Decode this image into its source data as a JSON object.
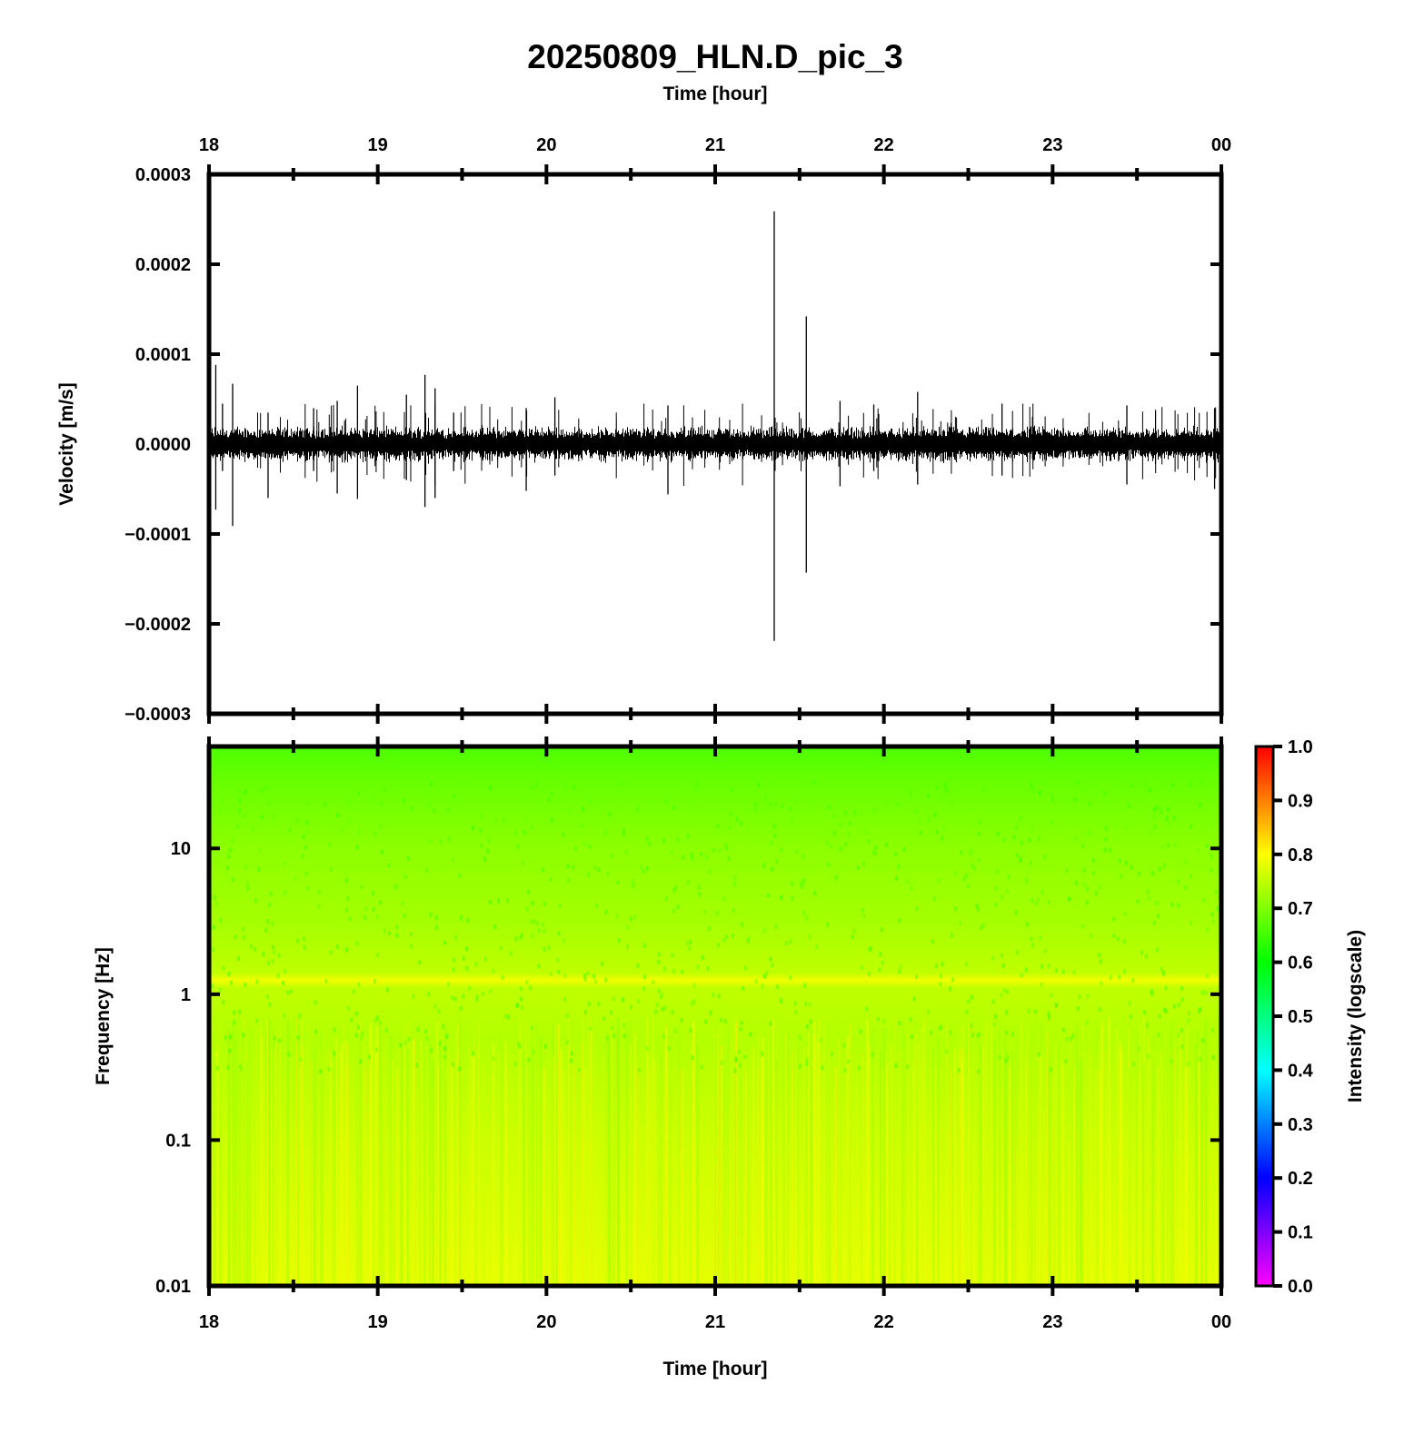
{
  "title": "20250809_HLN.D_pic_3",
  "chart_data": [
    {
      "type": "line",
      "name": "velocity-waveform",
      "top_xlabel": "Time [hour]",
      "ylabel": "Velocity [m/s]",
      "x_ticks": [
        "18",
        "19",
        "20",
        "21",
        "22",
        "23",
        "00"
      ],
      "xlim_hours": [
        18,
        24
      ],
      "ylim": [
        -0.0003,
        0.0003
      ],
      "y_ticks": [
        {
          "value": 0.0003,
          "label": "0.0003"
        },
        {
          "value": 0.0002,
          "label": "0.0002"
        },
        {
          "value": 0.0001,
          "label": "0.0001"
        },
        {
          "value": 0.0,
          "label": "0.0000"
        },
        {
          "value": -0.0001,
          "label": "−0.0001"
        },
        {
          "value": -0.0002,
          "label": "−0.0002"
        },
        {
          "value": -0.0003,
          "label": "−0.0003"
        }
      ],
      "noise_amplitude": 1.8e-05,
      "trace_color": "#000000",
      "spikes": [
        {
          "t": 18.04,
          "max": 8.8e-05,
          "min": -7.3e-05
        },
        {
          "t": 18.08,
          "max": 4.5e-05,
          "min": -3e-05
        },
        {
          "t": 18.14,
          "max": 6.7e-05,
          "min": -9.1e-05
        },
        {
          "t": 18.35,
          "max": 3.5e-05,
          "min": -6e-05
        },
        {
          "t": 18.62,
          "max": 4e-05,
          "min": -3e-05
        },
        {
          "t": 18.76,
          "max": 4.8e-05,
          "min": -5.5e-05
        },
        {
          "t": 18.88,
          "max": 6.5e-05,
          "min": -6.1e-05
        },
        {
          "t": 19.17,
          "max": 5.5e-05,
          "min": -4e-05
        },
        {
          "t": 19.28,
          "max": 7.7e-05,
          "min": -7e-05
        },
        {
          "t": 19.34,
          "max": 6.2e-05,
          "min": -6e-05
        },
        {
          "t": 19.45,
          "max": 3.5e-05,
          "min": -3e-05
        },
        {
          "t": 19.88,
          "max": 4e-05,
          "min": -5.2e-05
        },
        {
          "t": 20.05,
          "max": 5.2e-05,
          "min": -3.5e-05
        },
        {
          "t": 20.72,
          "max": 4.3e-05,
          "min": -5.6e-05
        },
        {
          "t": 21.35,
          "max": 0.000259,
          "min": -0.000219
        },
        {
          "t": 21.54,
          "max": 0.000142,
          "min": -0.000143
        },
        {
          "t": 21.74,
          "max": 4.8e-05,
          "min": -4.7e-05
        },
        {
          "t": 21.94,
          "max": 4.4e-05,
          "min": -3e-05
        },
        {
          "t": 22.2,
          "max": 5.8e-05,
          "min": -4.5e-05
        },
        {
          "t": 22.7,
          "max": 4.5e-05,
          "min": -3.5e-05
        },
        {
          "t": 23.44,
          "max": 4.3e-05,
          "min": -4.5e-05
        },
        {
          "t": 23.96,
          "max": 4e-05,
          "min": -5e-05
        }
      ]
    },
    {
      "type": "heatmap",
      "name": "spectrogram",
      "xlabel": "Time [hour]",
      "ylabel": "Frequency [Hz]",
      "x_ticks": [
        "18",
        "19",
        "20",
        "21",
        "22",
        "23",
        "00"
      ],
      "xlim_hours": [
        18,
        24
      ],
      "y_scale": "log",
      "ylim_hz": [
        0.01,
        50
      ],
      "y_ticks": [
        {
          "value": 10,
          "label": "10"
        },
        {
          "value": 1,
          "label": "1"
        },
        {
          "value": 0.1,
          "label": "0.1"
        },
        {
          "value": 0.01,
          "label": "0.01"
        }
      ],
      "intensity_profile": [
        {
          "freq_hz": 50,
          "intensity": 0.66
        },
        {
          "freq_hz": 30,
          "intensity": 0.68
        },
        {
          "freq_hz": 10,
          "intensity": 0.71
        },
        {
          "freq_hz": 3,
          "intensity": 0.73
        },
        {
          "freq_hz": 1.4,
          "intensity": 0.75
        },
        {
          "freq_hz": 1.25,
          "intensity": 0.79
        },
        {
          "freq_hz": 1.1,
          "intensity": 0.75
        },
        {
          "freq_hz": 0.5,
          "intensity": 0.74
        },
        {
          "freq_hz": 0.1,
          "intensity": 0.76
        },
        {
          "freq_hz": 0.01,
          "intensity": 0.78
        }
      ],
      "colorbar": {
        "label": "Intensity (logscale)",
        "range": [
          0.0,
          1.0
        ],
        "ticks": [
          "0.0",
          "0.1",
          "0.2",
          "0.3",
          "0.4",
          "0.5",
          "0.6",
          "0.7",
          "0.8",
          "0.9",
          "1.0"
        ],
        "colors": [
          "#ff00ff",
          "#0000ff",
          "#00ffff",
          "#00ff00",
          "#ffff00",
          "#ff0000"
        ]
      }
    }
  ]
}
